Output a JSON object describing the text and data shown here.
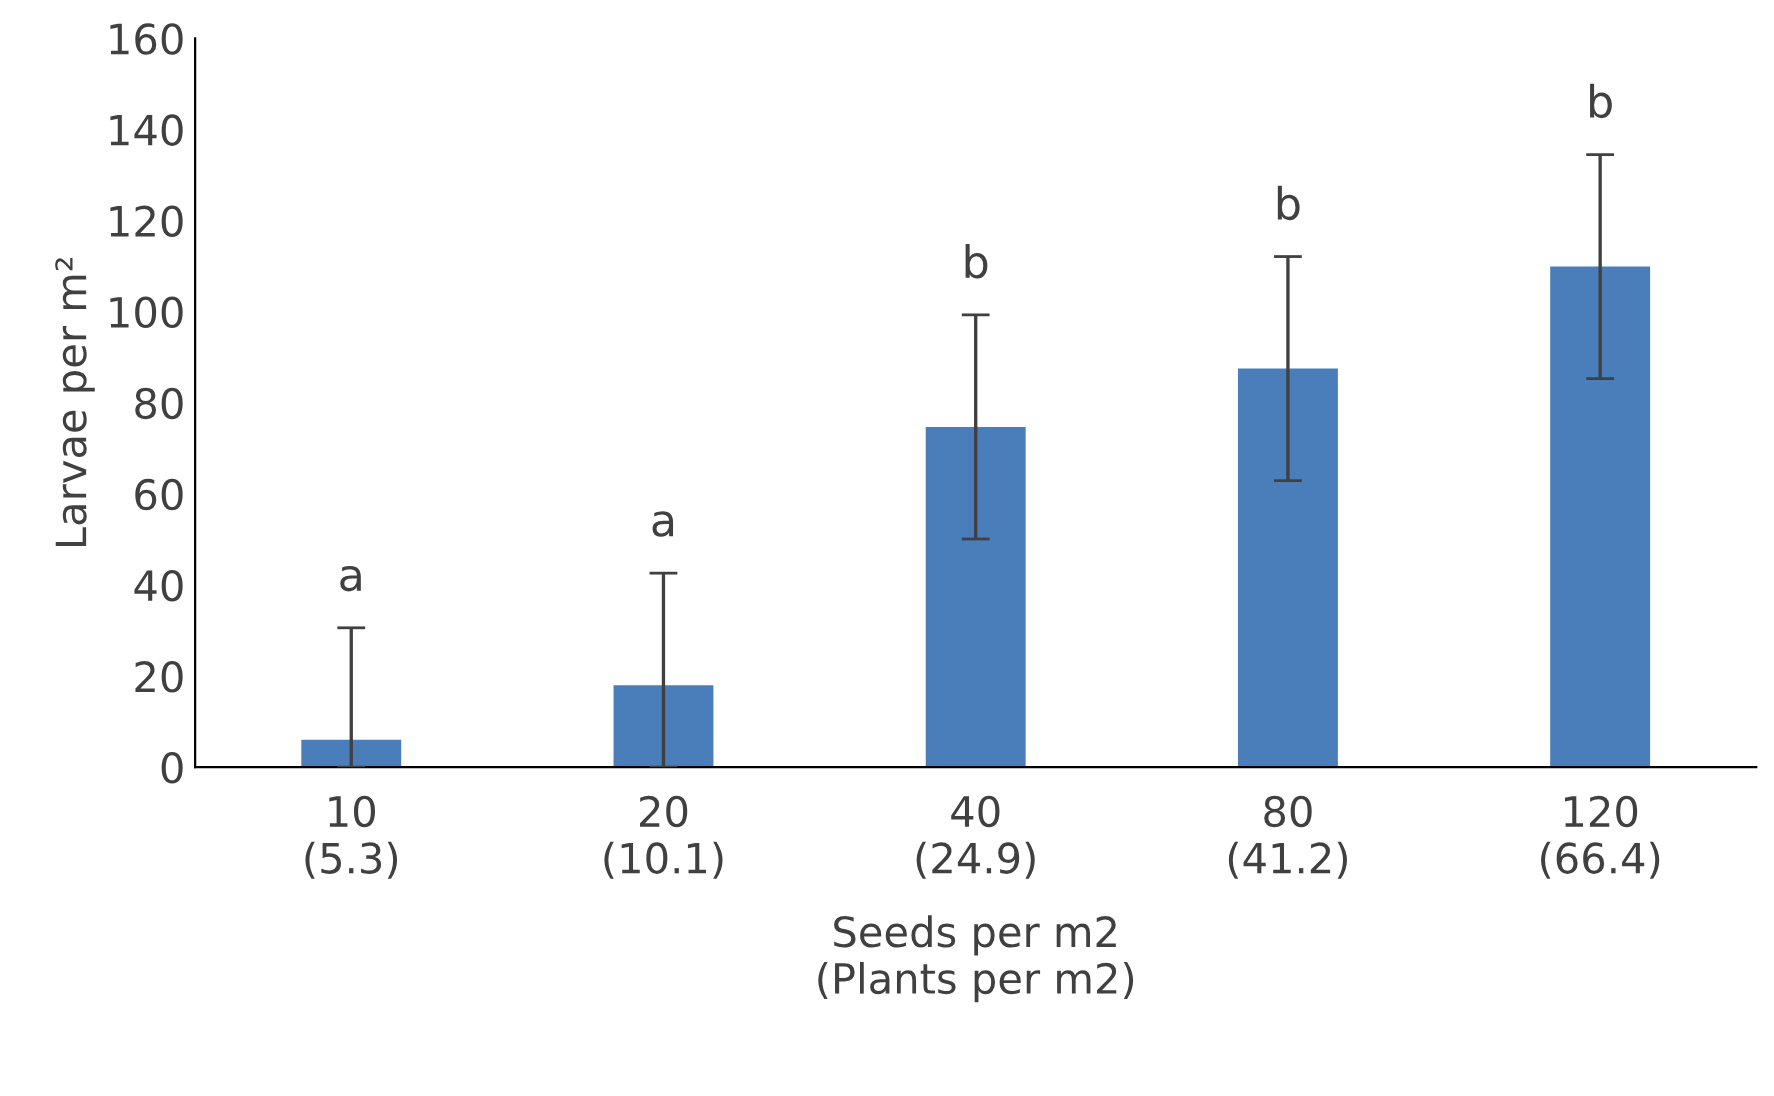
{
  "chart_data": {
    "type": "bar",
    "xlabel": "Seeds per m2\n(Plants per m2)",
    "ylabel": "Larvae per m²",
    "categories": [
      "10\n(5.3)",
      "20\n(10.1)",
      "40\n(24.9)",
      "80\n(41.2)",
      "120\n(66.4)"
    ],
    "values": [
      6,
      18,
      74.7,
      87.5,
      109.9
    ],
    "errors": [
      [
        0,
        30.6
      ],
      [
        0,
        42.6
      ],
      [
        50.1,
        99.3
      ],
      [
        62.9,
        112.1
      ],
      [
        85.3,
        134.5
      ]
    ],
    "color": "#4a7ebb",
    "ylim": [
      0,
      160
    ],
    "yticks": [
      0,
      20,
      40,
      60,
      80,
      100,
      120,
      140,
      160
    ],
    "grid": false,
    "annotations": [
      "a",
      "a",
      "b",
      "b",
      "b"
    ]
  }
}
